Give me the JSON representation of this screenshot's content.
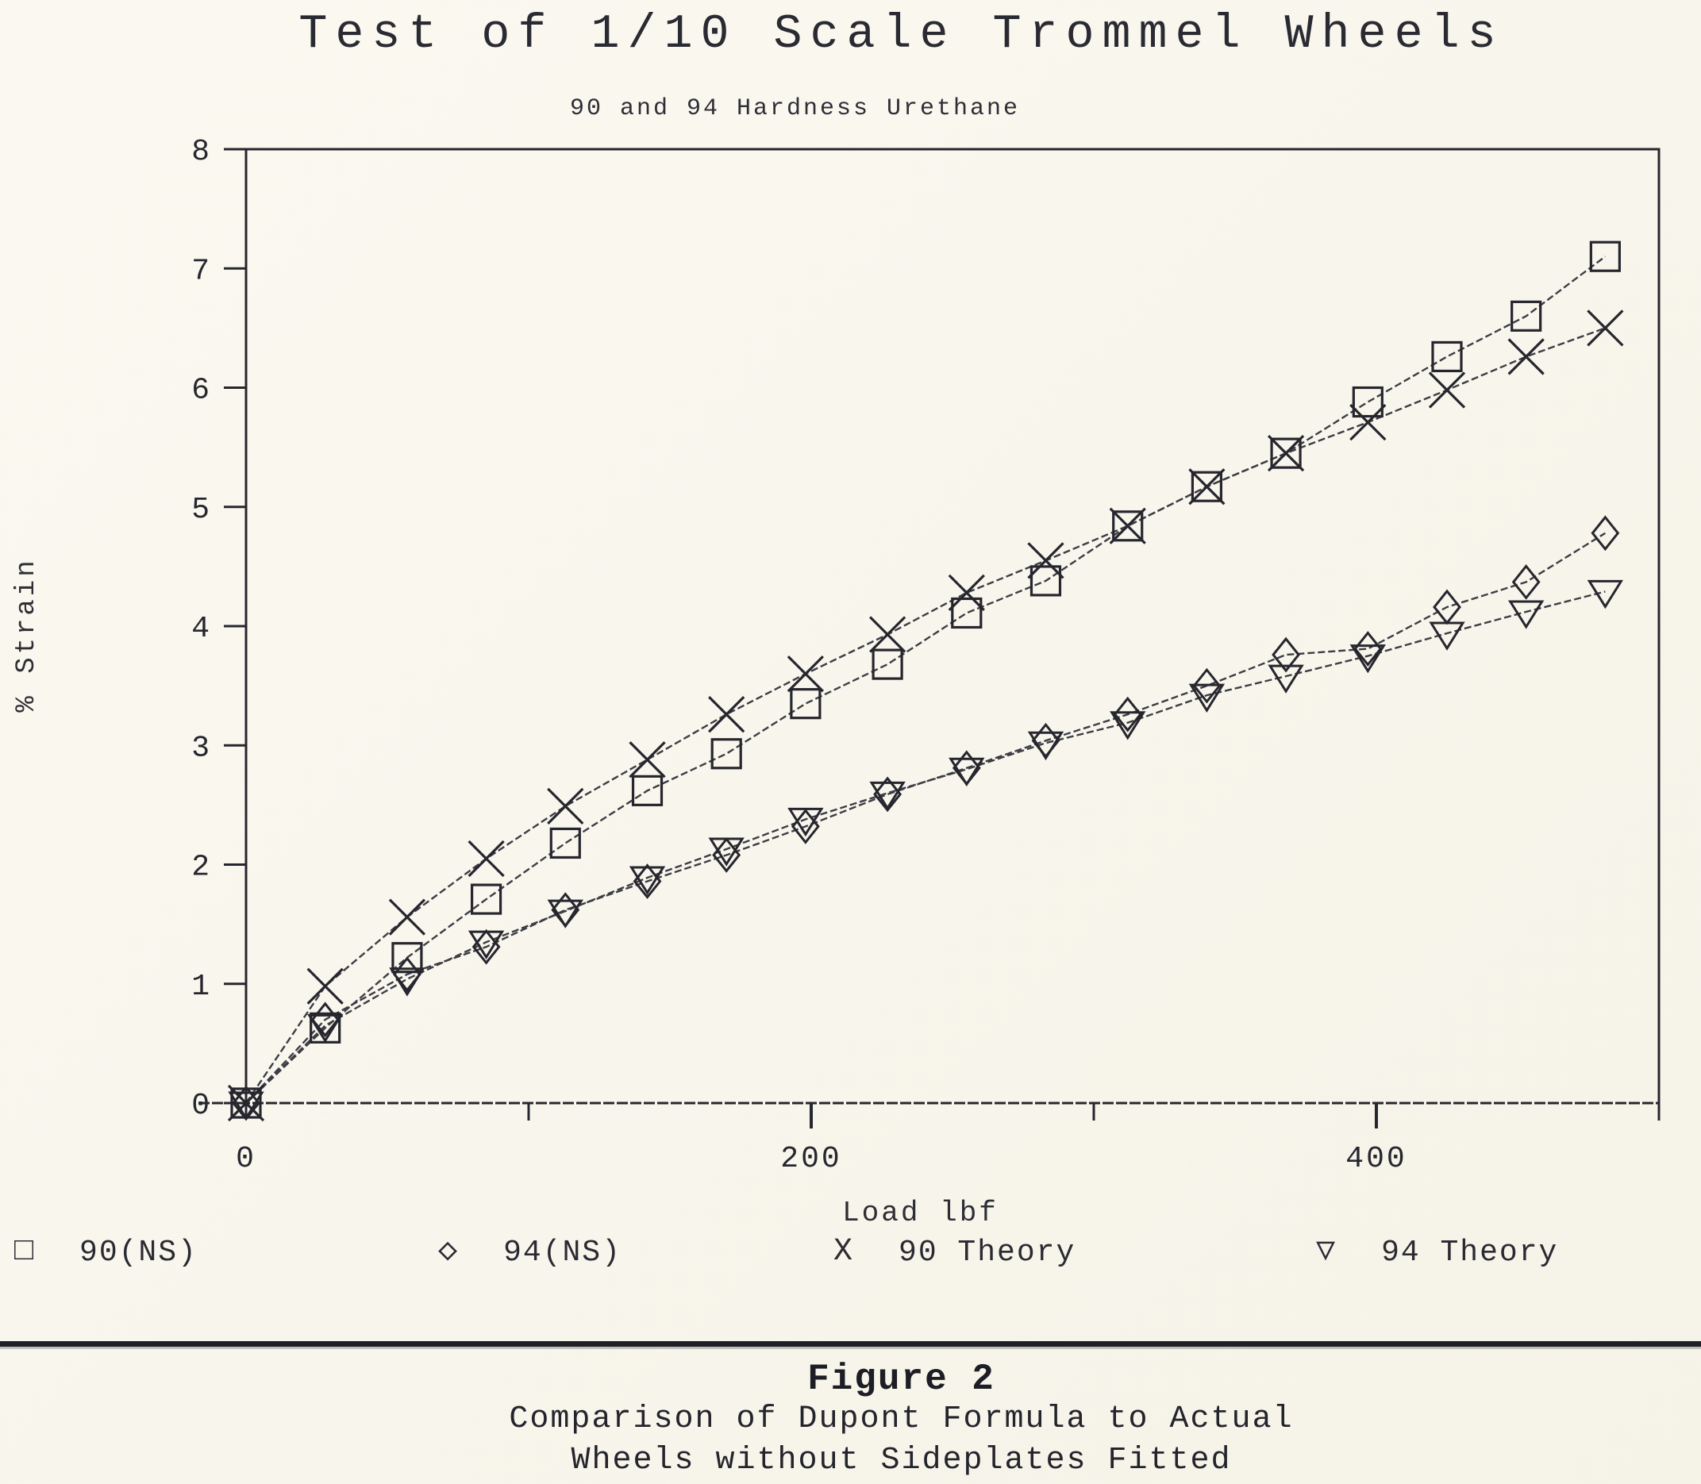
{
  "page": {
    "title": "Test of 1/10 Scale Trommel Wheels",
    "subtitle": "90 and 94 Hardness Urethane",
    "figure_label": "Figure 2",
    "caption_line1": "Comparison of Dupont Formula to Actual",
    "caption_line2": "Wheels without Sideplates Fitted"
  },
  "colors": {
    "background": "#f9f7ee",
    "ink": "#26262e",
    "series_line": "#3d3d45"
  },
  "chart_data": {
    "type": "line",
    "title": "Test of 1/10 Scale Trommel Wheels",
    "subtitle": "90 and 94 Hardness Urethane",
    "xlabel": "Load lbf",
    "ylabel": "% Strain",
    "xlim": [
      0,
      500
    ],
    "ylim": [
      0,
      8
    ],
    "x_major_ticks": [
      0,
      200,
      400
    ],
    "x_minor_ticks": [
      100,
      300,
      500
    ],
    "y_ticks": [
      0,
      1,
      2,
      3,
      4,
      5,
      6,
      7,
      8
    ],
    "grid": false,
    "legend_position": "bottom",
    "x": [
      0,
      28,
      57,
      85,
      113,
      142,
      170,
      198,
      227,
      255,
      283,
      312,
      340,
      368,
      397,
      425,
      453,
      481
    ],
    "series": [
      {
        "name": "90(NS)",
        "marker": "square",
        "legend_glyph": "□",
        "values": [
          0,
          0.63,
          1.22,
          1.71,
          2.18,
          2.62,
          2.93,
          3.35,
          3.68,
          4.11,
          4.38,
          4.84,
          5.17,
          5.45,
          5.88,
          6.26,
          6.6,
          7.1
        ]
      },
      {
        "name": "94(NS)",
        "marker": "diamond",
        "legend_glyph": "◇",
        "values": [
          0,
          0.7,
          1.08,
          1.31,
          1.62,
          1.86,
          2.08,
          2.32,
          2.59,
          2.81,
          3.04,
          3.26,
          3.5,
          3.76,
          3.81,
          4.16,
          4.37,
          4.78
        ]
      },
      {
        "name": "90 Theory",
        "marker": "x",
        "legend_glyph": "X",
        "values": [
          0,
          0.98,
          1.56,
          2.05,
          2.49,
          2.88,
          3.26,
          3.6,
          3.93,
          4.28,
          4.55,
          4.84,
          5.17,
          5.45,
          5.71,
          5.98,
          6.26,
          6.5
        ]
      },
      {
        "name": "94 Theory",
        "marker": "triangle-down",
        "legend_glyph": "▽",
        "values": [
          0,
          0.65,
          1.04,
          1.35,
          1.61,
          1.89,
          2.13,
          2.38,
          2.6,
          2.8,
          3.02,
          3.19,
          3.42,
          3.58,
          3.75,
          3.94,
          4.12,
          4.29
        ]
      }
    ]
  }
}
